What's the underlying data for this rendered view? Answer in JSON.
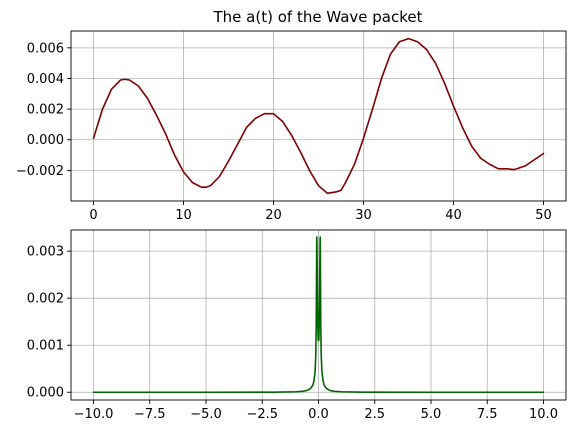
{
  "chart_data": [
    {
      "type": "line",
      "title": "The a(t) of the Wave packet",
      "xlabel": "",
      "ylabel": "",
      "xlim": [
        -2.5,
        52.5
      ],
      "ylim": [
        -0.004,
        0.0071
      ],
      "xticks": [
        0,
        10,
        20,
        30,
        40,
        50
      ],
      "xtick_labels": [
        "0",
        "10",
        "20",
        "30",
        "40",
        "50"
      ],
      "yticks": [
        -0.002,
        0.0,
        0.002,
        0.004,
        0.006
      ],
      "ytick_labels": [
        "−0.002",
        "0.000",
        "0.002",
        "0.004",
        "0.006"
      ],
      "grid": true,
      "color": "#7f0000",
      "series": [
        {
          "x": [
            0,
            1,
            2,
            3,
            3.5,
            4,
            5,
            6,
            7,
            8,
            9,
            10,
            11,
            12,
            12.5,
            13,
            14,
            15,
            16,
            17,
            18,
            19,
            20,
            21,
            22,
            23,
            24,
            25,
            26,
            27,
            27.5,
            28,
            29,
            30,
            31,
            32,
            33,
            34,
            35,
            36,
            37,
            38,
            39,
            40,
            41,
            42,
            43,
            44,
            45,
            46,
            46.7,
            47,
            48,
            49,
            50
          ],
          "y": [
            0.0001,
            0.002,
            0.0033,
            0.0039,
            0.00395,
            0.0039,
            0.0035,
            0.0027,
            0.0016,
            0.0004,
            -0.001,
            -0.0021,
            -0.0028,
            -0.0031,
            -0.0031,
            -0.003,
            -0.0024,
            -0.0014,
            -0.0003,
            0.0008,
            0.0014,
            0.0017,
            0.0017,
            0.0012,
            0.0003,
            -0.0008,
            -0.002,
            -0.003,
            -0.0035,
            -0.0034,
            -0.0033,
            -0.0028,
            -0.0016,
            0.0001,
            0.002,
            0.004,
            0.0056,
            0.0064,
            0.0066,
            0.0064,
            0.0059,
            0.005,
            0.0037,
            0.0022,
            0.0008,
            -0.0004,
            -0.0012,
            -0.0016,
            -0.0019,
            -0.0019,
            -0.00195,
            -0.0019,
            -0.0017,
            -0.0013,
            -0.0009
          ]
        }
      ]
    },
    {
      "type": "line",
      "title": "",
      "xlabel": "",
      "ylabel": "",
      "xlim": [
        -11.0,
        11.0
      ],
      "ylim": [
        -0.000165,
        0.00345
      ],
      "xticks": [
        -10,
        -7.5,
        -5,
        -2.5,
        0,
        2.5,
        5,
        7.5,
        10
      ],
      "xtick_labels": [
        "−10.0",
        "−7.5",
        "−5.0",
        "−2.5",
        "0.0",
        "2.5",
        "5.0",
        "7.5",
        "10.0"
      ],
      "yticks": [
        0.0,
        0.001,
        0.002,
        0.003
      ],
      "ytick_labels": [
        "0.000",
        "0.001",
        "0.002",
        "0.003"
      ],
      "grid": true,
      "color": "#006400",
      "series": [
        {
          "x": [
            -10,
            -5,
            -2,
            -1,
            -0.7,
            -0.5,
            -0.35,
            -0.25,
            -0.2,
            -0.15,
            -0.12,
            -0.1,
            -0.09,
            -0.08,
            -0.075,
            -0.07,
            -0.05,
            -0.03,
            -0.02,
            -0.01,
            0,
            0.01,
            0.02,
            0.03,
            0.05,
            0.07,
            0.075,
            0.08,
            0.09,
            0.1,
            0.12,
            0.15,
            0.2,
            0.25,
            0.35,
            0.5,
            0.7,
            1,
            2,
            5,
            10
          ],
          "y": [
            0,
            0,
            2e-06,
            1e-05,
            2e-05,
            4e-05,
            8e-05,
            0.00015,
            0.00025,
            0.00045,
            0.0008,
            0.0015,
            0.0024,
            0.0032,
            0.0033,
            0.0032,
            0.0022,
            0.0014,
            0.0012,
            0.0011,
            0.00115,
            0.0011,
            0.0012,
            0.0014,
            0.0022,
            0.0032,
            0.0033,
            0.0032,
            0.0024,
            0.0015,
            0.0008,
            0.00045,
            0.00025,
            0.00015,
            8e-05,
            4e-05,
            2e-05,
            1e-05,
            2e-06,
            0,
            0
          ]
        }
      ]
    }
  ]
}
